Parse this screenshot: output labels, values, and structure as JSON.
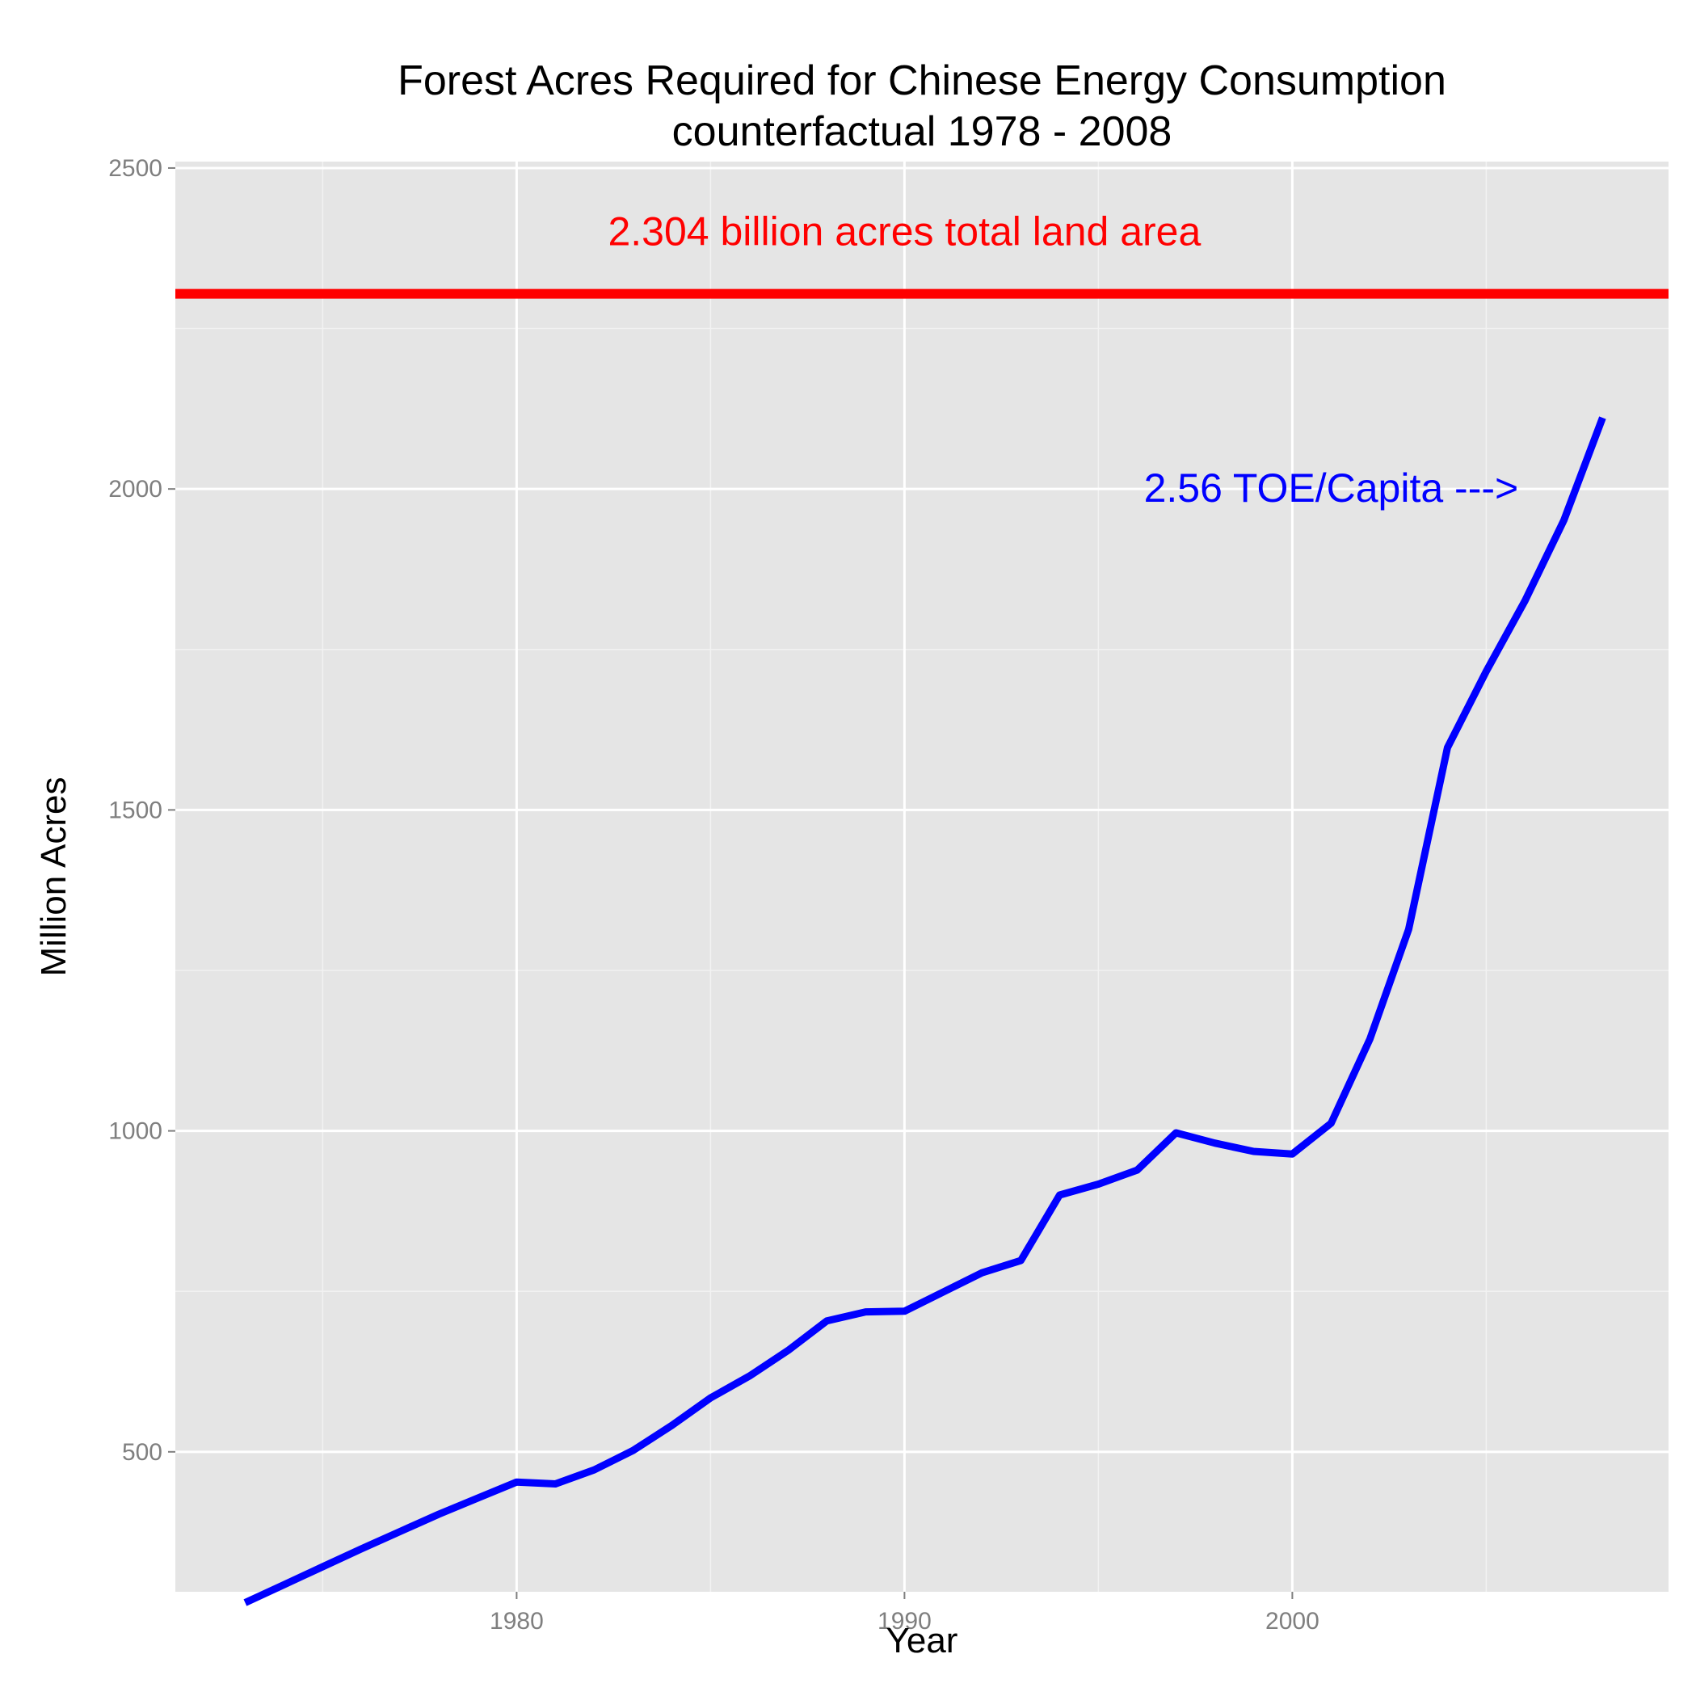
{
  "chart_data": {
    "type": "line",
    "title": "Forest Acres Required for Chinese Energy Consumption",
    "subtitle": "counterfactual 1978 - 2008",
    "xlabel": "Year",
    "ylabel": "Million Acres",
    "xlim": [
      1971.2,
      2009.7
    ],
    "ylim": [
      282,
      2510
    ],
    "x_ticks": [
      1980,
      1990,
      2000
    ],
    "x_tick_labels": [
      "1980",
      "1990",
      "2000"
    ],
    "x_minor_ticks": [
      1975,
      1985,
      1995,
      2005
    ],
    "y_ticks": [
      500,
      1000,
      1500,
      2000,
      2500
    ],
    "y_tick_labels": [
      "500",
      "1000",
      "1500",
      "2000",
      "2500"
    ],
    "y_minor_ticks": [
      250,
      750,
      1250,
      1750,
      2250
    ],
    "grid": true,
    "legend": "none",
    "series": [
      {
        "color": "#0000ff",
        "x": [
          1973,
          1974,
          1975,
          1976,
          1977,
          1978,
          1979,
          1980,
          1981,
          1982,
          1983,
          1984,
          1985,
          1986,
          1987,
          1988,
          1989,
          1990,
          1991,
          1992,
          1993,
          1994,
          1995,
          1996,
          1997,
          1998,
          1999,
          2000,
          2001,
          2002,
          2003,
          2004,
          2005,
          2006,
          2007,
          2008
        ],
        "y": [
          265,
          293,
          321,
          349,
          376,
          403,
          428,
          453,
          450,
          472,
          502,
          541,
          584,
          618,
          658,
          704,
          718,
          719,
          749,
          779,
          798,
          900,
          917,
          939,
          997,
          981,
          968,
          964,
          1012,
          1143,
          1314,
          1597,
          1716,
          1826,
          1951,
          2111
        ]
      }
    ],
    "hlines": [
      {
        "y": 2304,
        "color": "#ff0000",
        "label": "2.304 billion acres total land area"
      }
    ],
    "annotations": [
      {
        "text": "2.304 billion acres total land area",
        "x": 1990,
        "y": 2400,
        "color": "#ff0000"
      },
      {
        "text": "2.56 TOE/Capita --->",
        "x": 2001,
        "y": 2000,
        "color": "#0000ff"
      }
    ],
    "colors": {
      "panel_bg": "#e5e5e5",
      "grid_major": "#ffffff",
      "grid_minor": "#f2f2f2",
      "tick_text": "#7f7f7f"
    }
  }
}
